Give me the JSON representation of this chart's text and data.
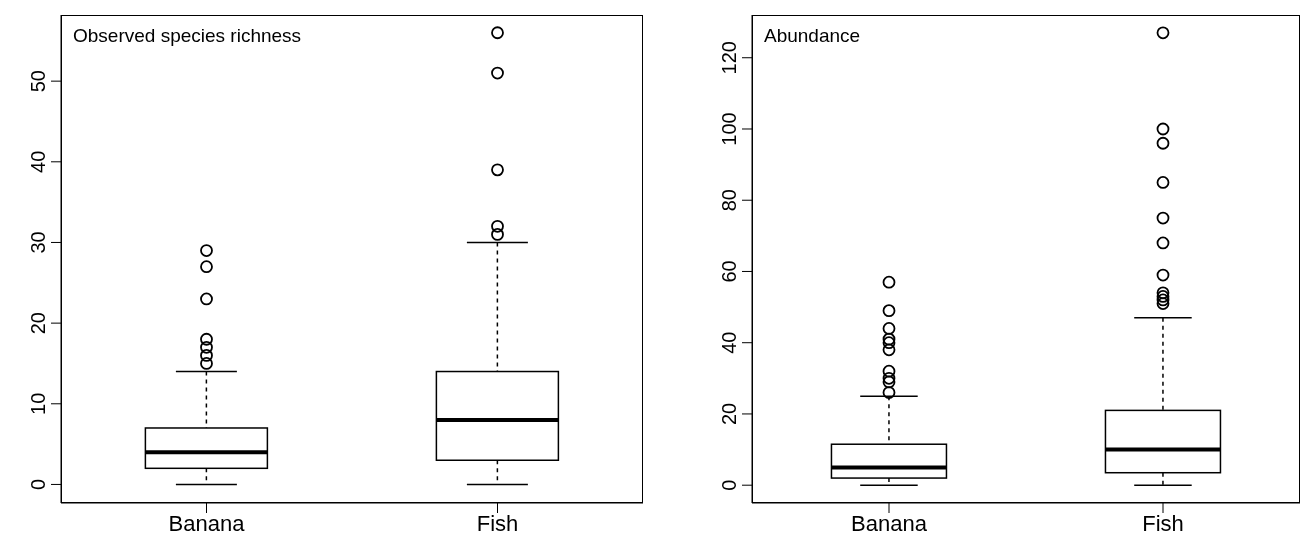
{
  "chart_data": [
    {
      "type": "box",
      "title": "Observed species richness",
      "categories": [
        "Banana",
        "Fish"
      ],
      "ylim": [
        -2.3,
        58.2
      ],
      "yticks": [
        0,
        10,
        20,
        30,
        40,
        50
      ],
      "grid": false,
      "boxes": [
        {
          "low": 0,
          "q1": 2,
          "median": 4,
          "q3": 7,
          "high": 14,
          "outliers": [
            15,
            16,
            17,
            18,
            23,
            27,
            29
          ]
        },
        {
          "low": 0,
          "q1": 3,
          "median": 8,
          "q3": 14,
          "high": 30,
          "outliers": [
            31,
            32,
            39,
            51,
            56
          ]
        }
      ]
    },
    {
      "type": "box",
      "title": "Abundance",
      "categories": [
        "Banana",
        "Fish"
      ],
      "ylim": [
        -5,
        132
      ],
      "yticks": [
        0,
        20,
        40,
        60,
        80,
        100,
        120
      ],
      "grid": false,
      "boxes": [
        {
          "low": 0,
          "q1": 2,
          "median": 5,
          "q3": 11.5,
          "high": 25,
          "outliers": [
            26,
            29,
            30,
            32,
            38,
            40,
            41,
            44,
            49,
            57
          ]
        },
        {
          "low": 0,
          "q1": 3.5,
          "median": 10,
          "q3": 21,
          "high": 47,
          "outliers": [
            51,
            52,
            53,
            54,
            59,
            68,
            75,
            85,
            96,
            100,
            127
          ]
        }
      ]
    }
  ]
}
